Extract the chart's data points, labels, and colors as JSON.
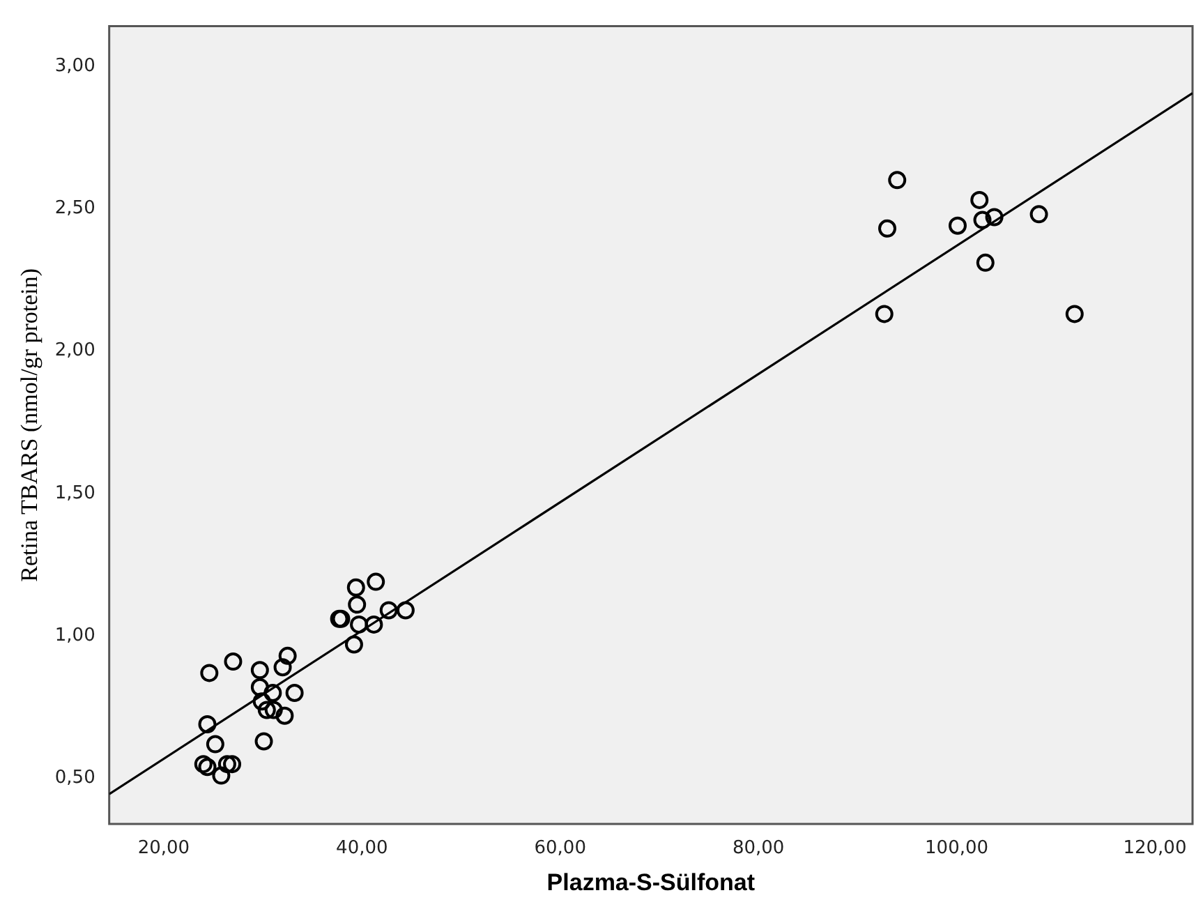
{
  "chart_data": {
    "type": "scatter",
    "xlabel": "Plazma-S-Sülfonat",
    "ylabel": "Retina TBARS (nmol/gr protein)",
    "xlim": [
      14.5,
      123.8
    ],
    "ylim": [
      0.34,
      3.14
    ],
    "xticks": [
      {
        "value": 20,
        "label": "20,00"
      },
      {
        "value": 40,
        "label": "40,00"
      },
      {
        "value": 60,
        "label": "60,00"
      },
      {
        "value": 80,
        "label": "80,00"
      },
      {
        "value": 100,
        "label": "100,00"
      },
      {
        "value": 120,
        "label": "120,00"
      }
    ],
    "yticks": [
      {
        "value": 0.5,
        "label": "0,50"
      },
      {
        "value": 1,
        "label": "1,00"
      },
      {
        "value": 1.5,
        "label": "1,50"
      },
      {
        "value": 2,
        "label": "2,00"
      },
      {
        "value": 2.5,
        "label": "2,50"
      },
      {
        "value": 3,
        "label": "3,00"
      }
    ],
    "grid": false,
    "legend": false,
    "marker": "circle",
    "series": [
      {
        "color": "#000000",
        "x": [
          24.6,
          27.0,
          24.4,
          25.2,
          24.0,
          24.4,
          25.8,
          26.4,
          26.9,
          30.1,
          29.7,
          29.7,
          31.0,
          29.9,
          30.4,
          31.1,
          32.2,
          33.2,
          32.0,
          32.5,
          39.2,
          37.9,
          37.7,
          39.5,
          39.4,
          41.4,
          39.7,
          41.2,
          42.7,
          44.4,
          94.0,
          93.0,
          92.7,
          100.1,
          102.3,
          102.6,
          103.8,
          102.9,
          108.3,
          111.9
        ],
        "values": [
          0.87,
          0.91,
          0.69,
          0.62,
          0.55,
          0.54,
          0.51,
          0.55,
          0.55,
          0.63,
          0.88,
          0.82,
          0.8,
          0.77,
          0.74,
          0.74,
          0.72,
          0.8,
          0.89,
          0.93,
          0.97,
          1.06,
          1.06,
          1.11,
          1.17,
          1.19,
          1.04,
          1.04,
          1.09,
          1.09,
          2.6,
          2.43,
          2.13,
          2.44,
          2.53,
          2.46,
          2.47,
          2.31,
          2.48,
          2.13
        ]
      },
      {
        "type": "line",
        "color": "#000000",
        "marker": "none",
        "x": [
          14.5,
          123.8
        ],
        "values": [
          0.445,
          2.905
        ]
      }
    ]
  }
}
